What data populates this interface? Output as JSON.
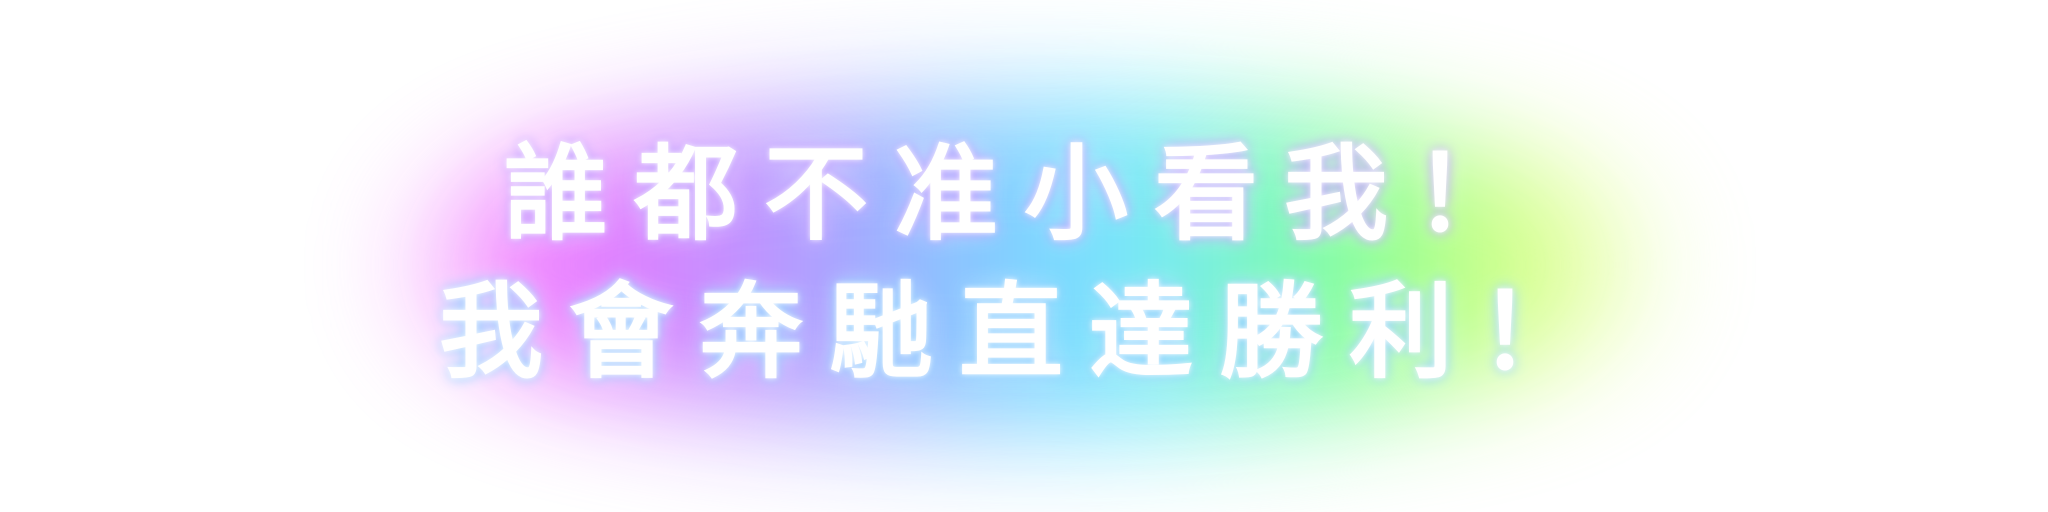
{
  "caption": {
    "line1": "誰都不准小看我！",
    "line2": "我會奔馳直達勝利！"
  },
  "colors": {
    "text": "#ffffff",
    "background": "#ffffff",
    "glow_pink": "#f070ff",
    "glow_purple": "#b890ff",
    "glow_blue": "#7fc8ff",
    "glow_cyan": "#6fe8ff",
    "glow_green": "#7dff9a",
    "glow_yellow": "#d8ff7a"
  }
}
